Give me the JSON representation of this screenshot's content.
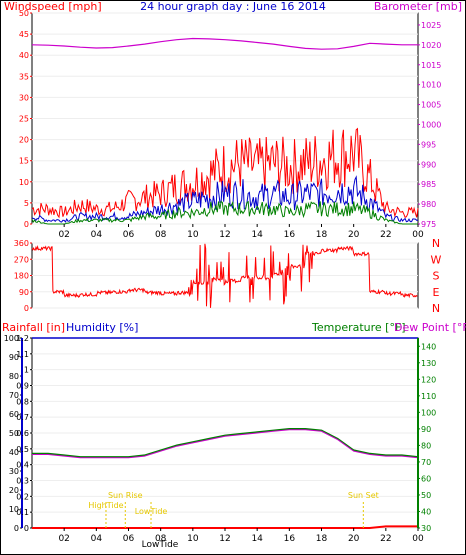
{
  "colors": {
    "wind_avg": "#0000cc",
    "wind_gust": "#ff0000",
    "wind_base": "#008000",
    "barometer": "#cc00cc",
    "direction": "#ff0000",
    "humidity": "#0000cc",
    "temperature": "#008000",
    "dew_point": "#cc00cc",
    "rain": "#ff0000",
    "events": "#e6c800",
    "axis": "#000000"
  },
  "chart_data": [
    {
      "type": "line",
      "title": "24 hour graph day : June 16 2014",
      "ylabel_left": "Windspeed [mph]",
      "ylabel_right": "Barometer [mb]",
      "ylim_left": [
        0,
        50
      ],
      "ylim_right": [
        975,
        1028
      ],
      "yticks_left": [
        "0",
        "5",
        "10",
        "15",
        "20",
        "25",
        "30",
        "35",
        "40",
        "45",
        "50"
      ],
      "yticks_right": [
        "975",
        "980",
        "985",
        "990",
        "995",
        "1000",
        "1005",
        "1010",
        "1015",
        "1020",
        "1025"
      ],
      "xticks": [
        "02",
        "04",
        "06",
        "08",
        "10",
        "12",
        "14",
        "16",
        "18",
        "20",
        "22",
        "00"
      ],
      "x": [
        0,
        1,
        2,
        3,
        4,
        5,
        6,
        7,
        8,
        9,
        10,
        11,
        12,
        13,
        14,
        15,
        16,
        17,
        18,
        19,
        20,
        21,
        22,
        23,
        24
      ],
      "series": [
        {
          "name": "Gust",
          "values": [
            4,
            4,
            3,
            5,
            4,
            4,
            6,
            7,
            8,
            10,
            11,
            13,
            15,
            16,
            15,
            16,
            15,
            16,
            17,
            18,
            19,
            12,
            4,
            3,
            3
          ]
        },
        {
          "name": "Average",
          "values": [
            2,
            1,
            1,
            2,
            2,
            2,
            2,
            3,
            4,
            5,
            6,
            7,
            8,
            8,
            7,
            8,
            7,
            8,
            8,
            9,
            9,
            6,
            2,
            1,
            1
          ]
        },
        {
          "name": "Base",
          "values": [
            1,
            0,
            0,
            1,
            1,
            1,
            1,
            2,
            2,
            3,
            3,
            4,
            4,
            4,
            4,
            4,
            3,
            4,
            4,
            4,
            4,
            3,
            1,
            0,
            0
          ]
        },
        {
          "name": "Barometer",
          "values": [
            1020.0,
            1019.9,
            1019.7,
            1019.4,
            1019.2,
            1019.3,
            1019.7,
            1020.2,
            1020.8,
            1021.3,
            1021.6,
            1021.5,
            1021.3,
            1021.0,
            1020.6,
            1020.2,
            1019.6,
            1019.1,
            1018.9,
            1019.0,
            1019.6,
            1020.4,
            1020.2,
            1020.0,
            1020.0
          ]
        }
      ]
    },
    {
      "type": "line",
      "ylim": [
        0,
        360
      ],
      "yticks": [
        "0",
        "90",
        "180",
        "270",
        "360"
      ],
      "compass_labels": [
        "N",
        "W",
        "S",
        "E",
        "N"
      ],
      "xticks": [
        "02",
        "04",
        "06",
        "08",
        "10",
        "12",
        "14",
        "16",
        "18",
        "20",
        "22",
        "00"
      ],
      "series": [
        {
          "name": "Direction",
          "x": [
            0,
            0.6,
            1,
            1.3,
            2,
            3,
            4,
            5,
            6,
            7,
            8,
            9,
            10,
            11,
            12,
            13,
            14,
            15,
            16,
            17,
            18,
            19,
            20,
            21,
            22,
            23,
            24
          ],
          "values": [
            330,
            330,
            330,
            90,
            70,
            75,
            85,
            90,
            100,
            85,
            80,
            85,
            140,
            160,
            150,
            170,
            165,
            190,
            230,
            300,
            320,
            330,
            300,
            90,
            80,
            70,
            75
          ]
        }
      ]
    },
    {
      "type": "line",
      "ylabel_left_1": "Rainfall [in]",
      "ylabel_left_2": "Humidity [%]",
      "ylabel_right_1": "Temperature [°F]",
      "ylabel_right_2": "Dew Point [°F]",
      "ylim_humidity": [
        0,
        100
      ],
      "ylim_rain": [
        0,
        1.2
      ],
      "ylim_temp": [
        30,
        145
      ],
      "yticks_humidity": [
        "0",
        "10",
        "20",
        "30",
        "40",
        "50",
        "60",
        "70",
        "80",
        "90",
        "100"
      ],
      "yticks_rain": [
        "0",
        "0.1",
        "0.2",
        "0.3",
        "0.4",
        "0.5",
        "0.6",
        "0.7",
        "0.8",
        "0.9",
        "1",
        "1.1",
        "1.2"
      ],
      "yticks_temp": [
        "30",
        "40",
        "50",
        "60",
        "70",
        "80",
        "90",
        "100",
        "110",
        "120",
        "130",
        "140"
      ],
      "xticks": [
        "02",
        "04",
        "06",
        "08",
        "10",
        "12",
        "14",
        "16",
        "18",
        "20",
        "22",
        "00"
      ],
      "x": [
        0,
        1,
        2,
        3,
        4,
        5,
        6,
        7,
        8,
        9,
        10,
        11,
        12,
        13,
        14,
        15,
        16,
        17,
        18,
        19,
        20,
        21,
        22,
        23,
        24
      ],
      "series": [
        {
          "name": "Humidity",
          "values": [
            100,
            100,
            100,
            100,
            100,
            100,
            100,
            100,
            100,
            100,
            100,
            100,
            100,
            100,
            100,
            100,
            100,
            100,
            100,
            100,
            100,
            100,
            100,
            100,
            100
          ]
        },
        {
          "name": "Temperature",
          "values": [
            75,
            75,
            74,
            73,
            73,
            73,
            73,
            74,
            77,
            80,
            82,
            84,
            86,
            87,
            88,
            89,
            90,
            90,
            89,
            84,
            77,
            75,
            74,
            74,
            73
          ]
        },
        {
          "name": "Dew Point",
          "values": [
            75,
            75,
            74,
            73,
            73,
            73,
            73,
            74,
            77,
            80,
            82,
            84,
            86,
            87,
            88,
            89,
            90,
            90,
            89,
            84,
            77,
            75,
            74,
            74,
            73
          ]
        },
        {
          "name": "Rainfall",
          "values": [
            0,
            0,
            0,
            0,
            0,
            0,
            0,
            0,
            0,
            0,
            0,
            0,
            0,
            0,
            0,
            0,
            0,
            0,
            0,
            0,
            0,
            0,
            0.01,
            0.01,
            0.01
          ]
        }
      ],
      "annotations": [
        {
          "label": "HighTide",
          "x": 4.6
        },
        {
          "label": "Sun Rise",
          "x": 5.8
        },
        {
          "label": "LowTide",
          "x": 7.4
        },
        {
          "label": "LowTide",
          "x": 23.1
        },
        {
          "label": "Sun Set",
          "x": 20.6
        }
      ],
      "bottom_label": "LowTide"
    }
  ]
}
